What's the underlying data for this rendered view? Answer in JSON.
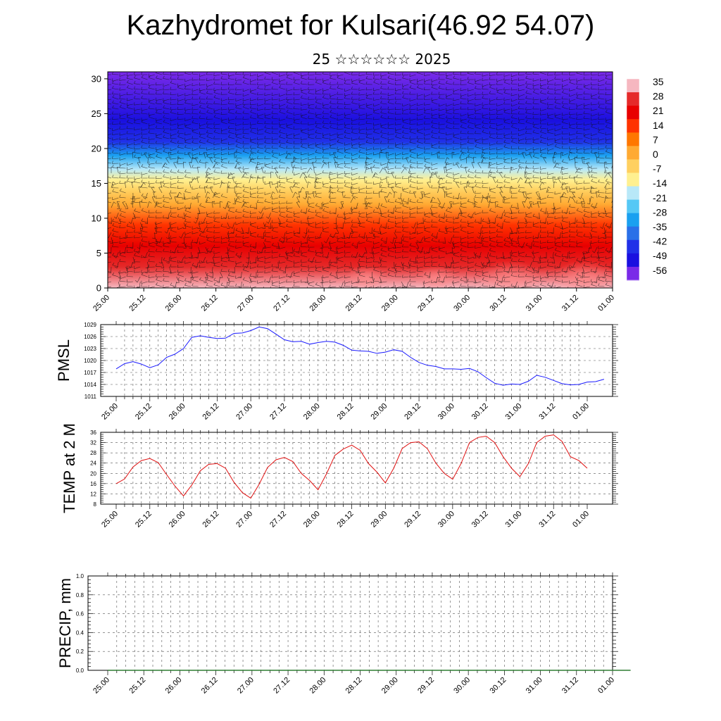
{
  "title": "Kazhydromet for Kulsari(46.92 54.07)",
  "subtitle": "25 ☆☆☆☆☆☆ 2025",
  "colors": {
    "pmsl_line": "#1a1aff",
    "temp_line": "#e01010",
    "grid": "#555555",
    "precip_baseline": "#2e7d32"
  },
  "chart_data": [
    {
      "type": "heatmap",
      "name": "vertical cross-section",
      "x_tick_labels": [
        "25.00",
        "25.12",
        "26.00",
        "26.12",
        "27.00",
        "27.12",
        "28.00",
        "28.12",
        "29.00",
        "29.12",
        "30.00",
        "30.12",
        "31.00",
        "31.12",
        "01.00"
      ],
      "y_ticks": [
        0,
        5,
        10,
        15,
        20,
        25,
        30
      ],
      "ylim": [
        0,
        31
      ],
      "colorbar_labels": [
        "35",
        "28",
        "21",
        "14",
        "7",
        "0",
        "-7",
        "-14",
        "-21",
        "-28",
        "-35",
        "-42",
        "-49",
        "-56"
      ],
      "colorbar_colors": [
        "#f6b7c0",
        "#e52a2a",
        "#e80000",
        "#ff3300",
        "#ff7700",
        "#ffaa33",
        "#ffd060",
        "#fff090",
        "#b8e8f8",
        "#55c8f5",
        "#1aa0f0",
        "#2a70e8",
        "#2030e8",
        "#1a10e0",
        "#7a2ae8"
      ],
      "temperature_by_height": [
        {
          "h": 0,
          "t": 32
        },
        {
          "h": 3,
          "t": 28
        },
        {
          "h": 6,
          "t": 21
        },
        {
          "h": 9,
          "t": 12
        },
        {
          "h": 12,
          "t": 2
        },
        {
          "h": 14,
          "t": -6
        },
        {
          "h": 15.5,
          "t": -12
        },
        {
          "h": 17,
          "t": -22
        },
        {
          "h": 19,
          "t": -32
        },
        {
          "h": 21,
          "t": -45
        },
        {
          "h": 24,
          "t": -55
        },
        {
          "h": 31,
          "t": -58
        }
      ],
      "wind_barbs": true
    },
    {
      "type": "line",
      "name": "pmsl",
      "ylabel": "PMSL",
      "ylim": [
        1011,
        1029
      ],
      "y_ticks": [
        1011,
        1014,
        1017,
        1020,
        1023,
        1026,
        1029
      ],
      "x_tick_labels": [
        "25.00",
        "25.12",
        "26.00",
        "26.12",
        "27.00",
        "27.12",
        "28.00",
        "28.12",
        "29.00",
        "29.12",
        "30.00",
        "30.12",
        "31.00",
        "31.12",
        "01.00"
      ],
      "step_hours": 3,
      "values": [
        1017.9,
        1019.2,
        1019.7,
        1019.1,
        1018.2,
        1018.9,
        1020.8,
        1021.6,
        1023.0,
        1025.8,
        1026.2,
        1025.8,
        1025.5,
        1025.6,
        1026.8,
        1026.9,
        1027.5,
        1028.4,
        1028.0,
        1026.6,
        1025.2,
        1024.7,
        1024.8,
        1024.1,
        1024.5,
        1024.8,
        1024.6,
        1023.8,
        1022.6,
        1022.4,
        1022.3,
        1021.8,
        1022.1,
        1022.7,
        1022.3,
        1020.8,
        1019.5,
        1018.8,
        1018.5,
        1017.9,
        1017.9,
        1017.8,
        1018.0,
        1017.2,
        1015.7,
        1014.3,
        1013.8,
        1014.1,
        1014.0,
        1014.8,
        1016.3,
        1015.8,
        1015.0,
        1014.2,
        1013.9,
        1014.0,
        1014.6,
        1014.7,
        1015.3
      ]
    },
    {
      "type": "line",
      "name": "temp at 2 m",
      "ylabel": "TEMP at 2 M",
      "ylim": [
        8,
        36
      ],
      "y_ticks": [
        8,
        12,
        16,
        20,
        24,
        28,
        32,
        36
      ],
      "x_tick_labels": [
        "25.00",
        "25.12",
        "26.00",
        "26.12",
        "27.00",
        "27.12",
        "28.00",
        "28.12",
        "29.00",
        "29.12",
        "30.00",
        "30.12",
        "31.00",
        "31.12",
        "01.00"
      ],
      "step_hours": 3,
      "values": [
        16.0,
        17.8,
        22.5,
        25.0,
        25.8,
        24.2,
        19.5,
        15.0,
        11.2,
        15.5,
        21.0,
        23.5,
        23.8,
        22.0,
        16.5,
        12.5,
        10.3,
        15.8,
        22.3,
        25.3,
        26.2,
        24.6,
        20.0,
        17.2,
        13.6,
        19.8,
        27.0,
        29.5,
        31.0,
        29.0,
        23.8,
        20.5,
        16.3,
        22.0,
        29.7,
        32.0,
        32.3,
        29.6,
        24.0,
        20.0,
        17.7,
        23.8,
        32.0,
        34.0,
        34.5,
        32.0,
        26.5,
        22.0,
        18.7,
        23.8,
        32.0,
        34.5,
        35.0,
        32.5,
        26.5,
        25.0,
        22.0
      ]
    },
    {
      "type": "line",
      "name": "precip",
      "ylabel": "PRECIP, mm",
      "ylim": [
        0,
        1
      ],
      "y_ticks": [
        "0.0",
        "0.2",
        "0.4",
        "0.6",
        "0.8",
        "1.0"
      ],
      "x_tick_labels": [
        "25.00",
        "25.12",
        "26.00",
        "26.12",
        "27.00",
        "27.12",
        "28.00",
        "28.12",
        "29.00",
        "29.12",
        "30.00",
        "30.12",
        "31.00",
        "31.12",
        "01.00"
      ],
      "step_hours": 3,
      "values": [
        0,
        0,
        0,
        0,
        0,
        0,
        0,
        0,
        0,
        0,
        0,
        0,
        0,
        0,
        0,
        0,
        0,
        0,
        0,
        0,
        0,
        0,
        0,
        0,
        0,
        0,
        0,
        0,
        0,
        0,
        0,
        0,
        0,
        0,
        0,
        0,
        0,
        0,
        0,
        0,
        0,
        0,
        0,
        0,
        0,
        0,
        0,
        0,
        0,
        0,
        0,
        0,
        0,
        0,
        0,
        0,
        0,
        0,
        0
      ]
    }
  ]
}
